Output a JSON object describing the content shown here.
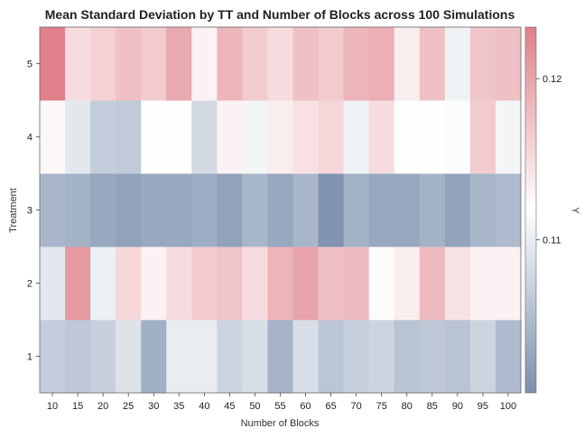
{
  "chart_data": {
    "type": "heatmap",
    "title": "Mean Standard Deviation by TT and Number of Blocks across 100 Simulations",
    "xlabel": "Number of Blocks",
    "ylabel": "Treatment",
    "colorbar_label": "Y",
    "x": [
      "10",
      "15",
      "20",
      "25",
      "30",
      "35",
      "40",
      "45",
      "50",
      "55",
      "60",
      "65",
      "70",
      "75",
      "80",
      "85",
      "90",
      "95",
      "100"
    ],
    "y": [
      "1",
      "2",
      "3",
      "4",
      "5"
    ],
    "values": [
      [
        0.1068,
        0.1063,
        0.1071,
        0.109,
        0.1038,
        0.11,
        0.11,
        0.1075,
        0.1085,
        0.1043,
        0.1085,
        0.106,
        0.107,
        0.1075,
        0.1058,
        0.1063,
        0.1058,
        0.1075,
        0.105
      ],
      [
        0.1095,
        0.121,
        0.1102,
        0.1155,
        0.113,
        0.115,
        0.1165,
        0.117,
        0.115,
        0.1185,
        0.12,
        0.1175,
        0.118,
        0.1122,
        0.1135,
        0.118,
        0.1145,
        0.113,
        0.113
      ],
      [
        0.1045,
        0.104,
        0.103,
        0.1025,
        0.103,
        0.103,
        0.1035,
        0.1025,
        0.1045,
        0.103,
        0.1045,
        0.101,
        0.104,
        0.103,
        0.103,
        0.104,
        0.1025,
        0.1045,
        0.105
      ],
      [
        0.1125,
        0.1095,
        0.1068,
        0.1065,
        0.112,
        0.112,
        0.108,
        0.113,
        0.1108,
        0.1135,
        0.1145,
        0.1155,
        0.1105,
        0.115,
        0.112,
        0.112,
        0.1115,
        0.1165,
        0.1108
      ],
      [
        0.1235,
        0.115,
        0.116,
        0.1175,
        0.1165,
        0.1195,
        0.113,
        0.1185,
        0.1165,
        0.115,
        0.1175,
        0.1165,
        0.1185,
        0.119,
        0.1135,
        0.1175,
        0.1105,
        0.117,
        0.1175
      ]
    ],
    "zlim": [
      0.1005,
      0.1232
    ],
    "colorbar_ticks": [
      0.11,
      0.12
    ],
    "colorbar_tick_labels": [
      "0.11",
      "0.12"
    ],
    "colorscale": [
      "#7a8fad",
      "#ffffff",
      "#df808a"
    ],
    "colorbar_position": "right",
    "grid": false
  }
}
